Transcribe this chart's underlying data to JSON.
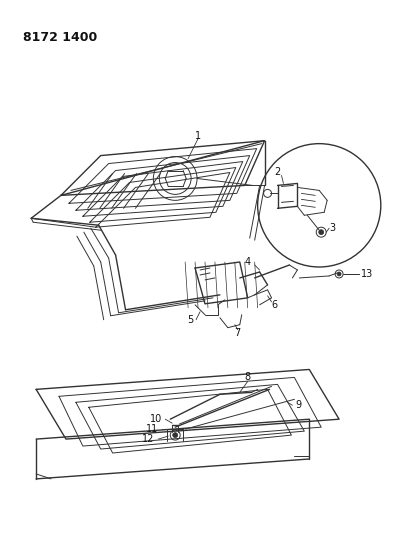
{
  "title_code": "8172 1400",
  "bg_color": "#ffffff",
  "line_color": "#333333",
  "label_color": "#111111",
  "label_fontsize": 7,
  "title_fontsize": 9
}
